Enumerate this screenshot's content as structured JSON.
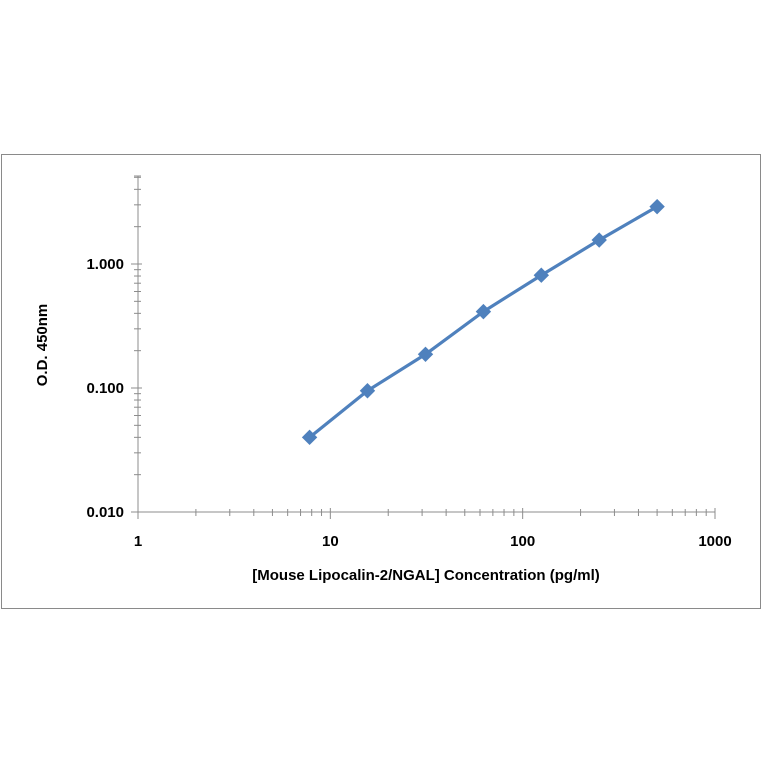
{
  "chart_data": {
    "type": "line",
    "title": "",
    "xlabel": "[Mouse Lipocalin-2/NGAL]  Concentration (pg/ml)",
    "ylabel": "O.D. 450nm",
    "x_scale": "log",
    "y_scale": "log",
    "xlim": [
      1,
      1000
    ],
    "ylim": [
      0.01,
      5
    ],
    "x_ticks": [
      "1",
      "10",
      "100",
      "1000"
    ],
    "y_ticks": [
      "0.010",
      "0.100",
      "1.000"
    ],
    "grid": false,
    "legend": "none",
    "series": [
      {
        "marker": "diamond",
        "color": "#4f81bd",
        "x": [
          7.8,
          15.6,
          31.25,
          62.5,
          125,
          250,
          500
        ],
        "y": [
          0.04,
          0.095,
          0.187,
          0.413,
          0.812,
          1.56,
          2.9
        ]
      }
    ]
  }
}
